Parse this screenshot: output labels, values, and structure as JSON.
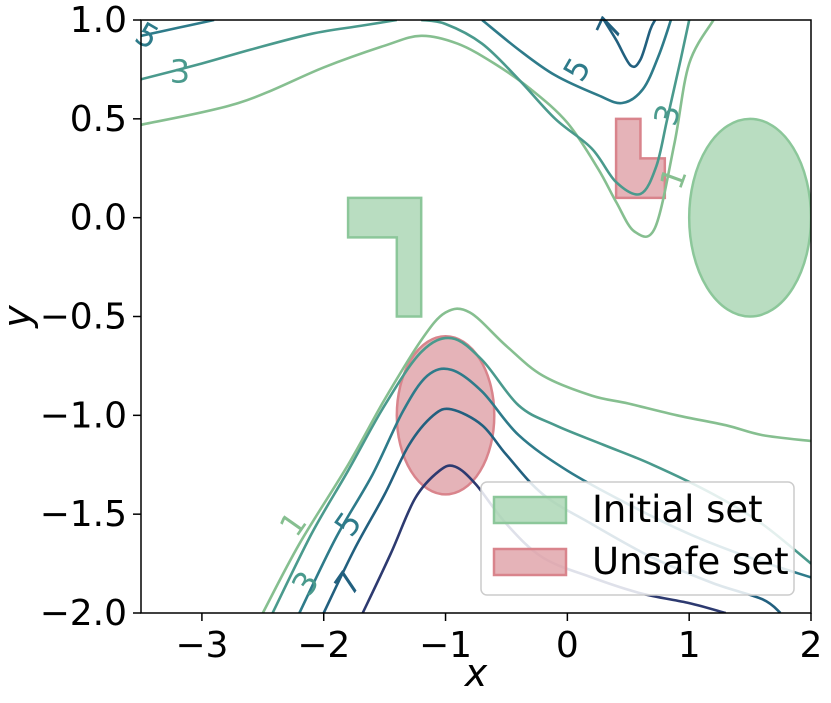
{
  "chart_data": {
    "type": "contour",
    "xlabel": "x",
    "ylabel": "y",
    "xlim": [
      -3.5,
      2.0
    ],
    "ylim": [
      -2.0,
      1.0
    ],
    "xticks": [
      -3,
      -2,
      -1,
      0,
      1,
      2
    ],
    "yticks": [
      -2.0,
      -1.5,
      -1.0,
      -0.5,
      0.0,
      0.5,
      1.0
    ],
    "xtick_labels": [
      "−3",
      "−2",
      "−1",
      "0",
      "1",
      "2"
    ],
    "ytick_labels": [
      "−2.0",
      "−1.5",
      "−1.0",
      "−0.5",
      "0.0",
      "0.5",
      "1.0"
    ],
    "legend": {
      "placement": "lower-right",
      "entries": [
        {
          "label": "Initial set",
          "color": "#a8d5b1"
        },
        {
          "label": "Unsafe set",
          "color": "#dea0a6"
        }
      ]
    },
    "regions": [
      {
        "set": "initial",
        "shape": "polygon",
        "points": [
          [
            -1.8,
            0.1
          ],
          [
            -1.2,
            0.1
          ],
          [
            -1.2,
            -0.5
          ],
          [
            -1.4,
            -0.5
          ],
          [
            -1.4,
            -0.1
          ],
          [
            -1.8,
            -0.1
          ]
        ]
      },
      {
        "set": "initial",
        "shape": "ellipse",
        "center": [
          1.5,
          0.0
        ],
        "rx": 0.5,
        "ry": 0.5
      },
      {
        "set": "unsafe",
        "shape": "polygon",
        "points": [
          [
            0.4,
            0.5
          ],
          [
            0.6,
            0.5
          ],
          [
            0.6,
            0.3
          ],
          [
            0.8,
            0.3
          ],
          [
            0.8,
            0.1
          ],
          [
            0.4,
            0.1
          ]
        ]
      },
      {
        "set": "unsafe",
        "shape": "ellipse",
        "center": [
          -1.0,
          -1.0
        ],
        "rx": 0.4,
        "ry": 0.4
      }
    ],
    "contours": [
      {
        "level": 1,
        "color": "#86bf90",
        "segments": [
          [
            [
              -3.5,
              0.47
            ],
            [
              -2.7,
              0.58
            ],
            [
              -2.0,
              0.76
            ],
            [
              -1.5,
              0.87
            ],
            [
              -1.2,
              0.92
            ],
            [
              -0.9,
              0.88
            ],
            [
              -0.6,
              0.78
            ],
            [
              -0.3,
              0.65
            ],
            [
              0.0,
              0.48
            ],
            [
              0.25,
              0.25
            ],
            [
              0.4,
              0.08
            ],
            [
              0.55,
              -0.07
            ],
            [
              0.72,
              -0.05
            ],
            [
              0.88,
              0.38
            ],
            [
              1.0,
              0.78
            ],
            [
              1.2,
              1.0
            ]
          ],
          [
            [
              -2.5,
              -2.0
            ],
            [
              -2.2,
              -1.65
            ],
            [
              -1.8,
              -1.25
            ],
            [
              -1.5,
              -0.92
            ],
            [
              -1.2,
              -0.62
            ],
            [
              -1.0,
              -0.48
            ],
            [
              -0.8,
              -0.48
            ],
            [
              -0.5,
              -0.65
            ],
            [
              -0.2,
              -0.8
            ],
            [
              0.2,
              -0.9
            ],
            [
              0.5,
              -0.94
            ],
            [
              0.9,
              -1.0
            ],
            [
              1.3,
              -1.05
            ],
            [
              1.6,
              -1.1
            ],
            [
              2.0,
              -1.13
            ]
          ]
        ]
      },
      {
        "level": 3,
        "color": "#4a9a8d",
        "segments": [
          [
            [
              -3.5,
              0.7
            ],
            [
              -3.0,
              0.78
            ],
            [
              -2.6,
              0.85
            ],
            [
              -2.1,
              0.93
            ],
            [
              -1.7,
              0.97
            ],
            [
              -1.4,
              1.0
            ]
          ],
          [
            [
              -1.2,
              1.0
            ],
            [
              -1.0,
              0.98
            ],
            [
              -0.7,
              0.88
            ],
            [
              -0.4,
              0.7
            ],
            [
              -0.1,
              0.5
            ],
            [
              0.2,
              0.35
            ],
            [
              0.4,
              0.18
            ],
            [
              0.6,
              0.12
            ],
            [
              0.73,
              0.26
            ],
            [
              0.82,
              0.5
            ],
            [
              0.93,
              0.8
            ],
            [
              1.0,
              1.0
            ]
          ],
          [
            [
              -2.42,
              -2.0
            ],
            [
              -2.1,
              -1.6
            ],
            [
              -1.8,
              -1.28
            ],
            [
              -1.5,
              -0.95
            ],
            [
              -1.2,
              -0.68
            ],
            [
              -0.95,
              -0.61
            ],
            [
              -0.7,
              -0.72
            ],
            [
              -0.4,
              -0.95
            ],
            [
              -0.1,
              -1.05
            ],
            [
              0.3,
              -1.15
            ],
            [
              0.7,
              -1.25
            ],
            [
              1.2,
              -1.4
            ],
            [
              1.6,
              -1.55
            ],
            [
              2.0,
              -1.75
            ]
          ]
        ]
      },
      {
        "level": 5,
        "color": "#2e7b8a",
        "segments": [
          [
            [
              -3.5,
              0.92
            ],
            [
              -3.2,
              0.96
            ],
            [
              -2.9,
              1.0
            ]
          ],
          [
            [
              -0.7,
              1.0
            ],
            [
              -0.4,
              0.85
            ],
            [
              -0.1,
              0.72
            ],
            [
              0.25,
              0.62
            ],
            [
              0.45,
              0.58
            ],
            [
              0.62,
              0.65
            ],
            [
              0.75,
              0.82
            ],
            [
              0.85,
              1.0
            ]
          ],
          [
            [
              -2.2,
              -2.0
            ],
            [
              -1.9,
              -1.62
            ],
            [
              -1.6,
              -1.3
            ],
            [
              -1.35,
              -0.98
            ],
            [
              -1.15,
              -0.8
            ],
            [
              -0.95,
              -0.77
            ],
            [
              -0.7,
              -0.88
            ],
            [
              -0.4,
              -1.1
            ],
            [
              0.0,
              -1.28
            ],
            [
              0.5,
              -1.45
            ],
            [
              1.0,
              -1.6
            ],
            [
              1.5,
              -1.72
            ],
            [
              2.0,
              -1.82
            ]
          ]
        ]
      },
      {
        "level": 7,
        "color": "#22607f",
        "segments": [
          [
            [
              0.3,
              1.0
            ],
            [
              0.4,
              0.9
            ],
            [
              0.52,
              0.77
            ],
            [
              0.6,
              0.8
            ],
            [
              0.68,
              0.95
            ],
            [
              0.72,
              1.0
            ]
          ],
          [
            [
              -2.0,
              -2.0
            ],
            [
              -1.75,
              -1.68
            ],
            [
              -1.5,
              -1.4
            ],
            [
              -1.3,
              -1.15
            ],
            [
              -1.1,
              -1.0
            ],
            [
              -0.95,
              -0.97
            ],
            [
              -0.7,
              -1.05
            ],
            [
              -0.5,
              -1.2
            ],
            [
              -0.2,
              -1.4
            ],
            [
              0.2,
              -1.55
            ],
            [
              0.7,
              -1.72
            ],
            [
              1.2,
              -1.85
            ],
            [
              1.6,
              -1.93
            ],
            [
              1.75,
              -2.0
            ]
          ]
        ]
      },
      {
        "level": 9,
        "color": "#2d3a70",
        "segments": [
          [
            [
              -1.68,
              -2.0
            ],
            [
              -1.45,
              -1.7
            ],
            [
              -1.25,
              -1.42
            ],
            [
              -1.05,
              -1.28
            ],
            [
              -0.92,
              -1.26
            ],
            [
              -0.75,
              -1.35
            ],
            [
              -0.5,
              -1.55
            ],
            [
              -0.2,
              -1.72
            ],
            [
              0.2,
              -1.82
            ],
            [
              0.6,
              -1.9
            ],
            [
              1.0,
              -1.95
            ],
            [
              1.3,
              -2.0
            ]
          ]
        ]
      }
    ],
    "contour_labels": [
      {
        "text": "1",
        "x": -2.25,
        "y": -1.55,
        "angle": -55,
        "color": "#86bf90"
      },
      {
        "text": "3",
        "x": -2.15,
        "y": -1.85,
        "angle": -55,
        "color": "#4a9a8d"
      },
      {
        "text": "5",
        "x": -1.8,
        "y": -1.55,
        "angle": -55,
        "color": "#2e7b8a"
      },
      {
        "text": "7",
        "x": -1.8,
        "y": -1.85,
        "angle": -55,
        "color": "#22607f"
      },
      {
        "text": "3",
        "x": -3.18,
        "y": 0.74,
        "angle": 0,
        "color": "#4a9a8d"
      },
      {
        "text": "5",
        "x": -3.45,
        "y": 0.92,
        "angle": 30,
        "color": "#2e7b8a"
      },
      {
        "text": "5",
        "x": 0.08,
        "y": 0.75,
        "angle": -60,
        "color": "#2e7b8a"
      },
      {
        "text": "7",
        "x": 0.35,
        "y": 0.96,
        "angle": -65,
        "color": "#22607f"
      },
      {
        "text": "3",
        "x": 0.82,
        "y": 0.52,
        "angle": -75,
        "color": "#4a9a8d"
      },
      {
        "text": "1",
        "x": 0.87,
        "y": 0.2,
        "angle": -70,
        "color": "#86bf90"
      }
    ]
  }
}
